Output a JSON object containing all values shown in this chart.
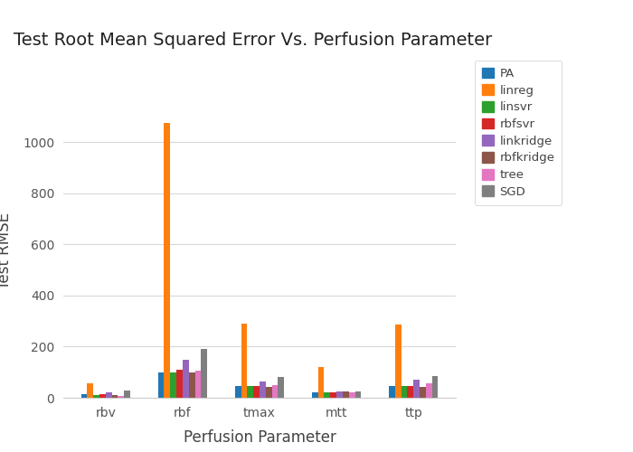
{
  "title": "Test Root Mean Squared Error Vs. Perfusion Parameter",
  "xlabel": "Perfusion Parameter",
  "ylabel": "Test RMSE",
  "categories": [
    "rbv",
    "rbf",
    "tmax",
    "mtt",
    "ttp"
  ],
  "series": [
    {
      "name": "PA",
      "color": "#1f77b4",
      "values": [
        15,
        100,
        45,
        20,
        45
      ]
    },
    {
      "name": "linreg",
      "color": "#ff7f0e",
      "values": [
        55,
        1075,
        290,
        120,
        285
      ]
    },
    {
      "name": "linsvr",
      "color": "#2ca02c",
      "values": [
        10,
        100,
        45,
        20,
        45
      ]
    },
    {
      "name": "rbfsvr",
      "color": "#d62728",
      "values": [
        15,
        110,
        45,
        22,
        45
      ]
    },
    {
      "name": "linkridge",
      "color": "#9467bd",
      "values": [
        22,
        150,
        65,
        25,
        70
      ]
    },
    {
      "name": "rbfkridge",
      "color": "#8c564b",
      "values": [
        12,
        100,
        42,
        25,
        42
      ]
    },
    {
      "name": "tree",
      "color": "#e377c2",
      "values": [
        8,
        105,
        48,
        20,
        55
      ]
    },
    {
      "name": "SGD",
      "color": "#7f7f7f",
      "values": [
        30,
        190,
        80,
        25,
        85
      ]
    }
  ],
  "background_color": "#ffffff",
  "grid_color": "#d8d8d8",
  "title_fontsize": 14,
  "axis_fontsize": 12,
  "tick_fontsize": 10,
  "bar_width": 0.08,
  "ylim": [
    0,
    1150
  ],
  "yticks": [
    0,
    200,
    400,
    600,
    800,
    1000
  ]
}
